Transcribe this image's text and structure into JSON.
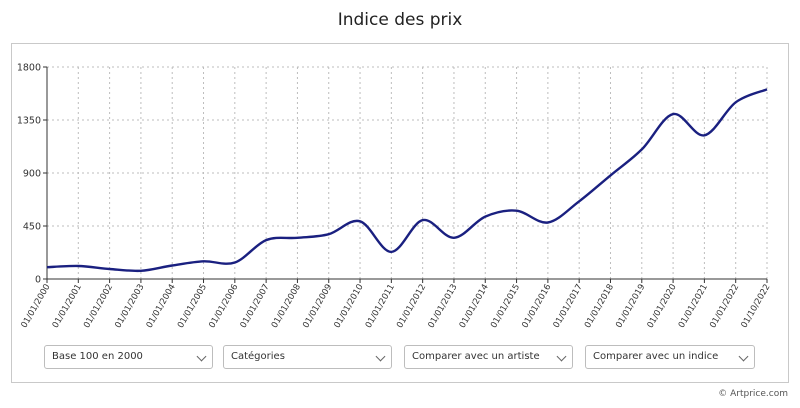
{
  "page": {
    "title": "Indice des prix",
    "copyright": "© Artprice.com"
  },
  "controls": {
    "base": "Base 100 en 2000",
    "categories": "Catégories",
    "compare_artist": "Comparer avec un artiste",
    "compare_index": "Comparer avec un indice"
  },
  "colors": {
    "line": "#1a2080",
    "grid": "#bdbdbd",
    "axis": "#333333"
  },
  "chart_data": {
    "type": "line",
    "title": "Indice des prix",
    "xlabel": "",
    "ylabel": "",
    "ylim": [
      0,
      1800
    ],
    "yticks": [
      0,
      450,
      900,
      1350,
      1800
    ],
    "grid": true,
    "categories": [
      "01/01/2000",
      "01/01/2001",
      "01/01/2002",
      "01/01/2003",
      "01/01/2004",
      "01/01/2005",
      "01/01/2006",
      "01/01/2007",
      "01/01/2008",
      "01/01/2009",
      "01/01/2010",
      "01/01/2011",
      "01/01/2012",
      "01/01/2013",
      "01/01/2014",
      "01/01/2015",
      "01/01/2016",
      "01/01/2017",
      "01/01/2018",
      "01/01/2019",
      "01/01/2020",
      "01/01/2021",
      "01/01/2022",
      "01/10/2022"
    ],
    "series": [
      {
        "values": [
          100,
          110,
          85,
          70,
          115,
          150,
          140,
          330,
          350,
          380,
          490,
          230,
          500,
          350,
          530,
          580,
          480,
          660,
          880,
          1100,
          1400,
          1220,
          1500,
          1610
        ]
      }
    ]
  }
}
